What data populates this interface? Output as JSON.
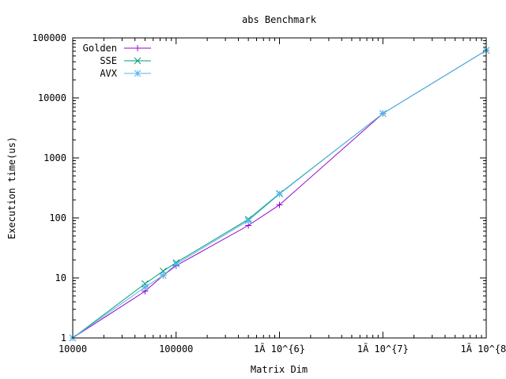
{
  "chart_data": {
    "type": "line",
    "title": "abs Benchmark",
    "xlabel": "Matrix Dim",
    "ylabel": "Execution time(us)",
    "x_scale": "log",
    "y_scale": "log",
    "xlim": [
      10000,
      100000000
    ],
    "ylim": [
      1,
      100000
    ],
    "x_ticks": [
      {
        "value": 10000,
        "label": "10000"
      },
      {
        "value": 100000,
        "label": "100000"
      },
      {
        "value": 1000000,
        "label": "1Ã 10^{6}"
      },
      {
        "value": 10000000,
        "label": "1Ã 10^{7}"
      },
      {
        "value": 100000000,
        "label": "1Ã 10^{8}"
      }
    ],
    "y_ticks": [
      {
        "value": 1,
        "label": "1"
      },
      {
        "value": 10,
        "label": "10"
      },
      {
        "value": 100,
        "label": "100"
      },
      {
        "value": 1000,
        "label": "1000"
      },
      {
        "value": 10000,
        "label": "10000"
      },
      {
        "value": 100000,
        "label": "100000"
      }
    ],
    "grid": false,
    "legend_position": "top-left",
    "series": [
      {
        "name": "Golden",
        "color": "#9400d3",
        "marker": "plus",
        "x": [
          10000,
          50000,
          75000,
          100000,
          500000,
          1000000,
          10000000,
          100000000
        ],
        "y": [
          1,
          6,
          11,
          16,
          75,
          165,
          5500,
          62000
        ]
      },
      {
        "name": "SSE",
        "color": "#009e73",
        "marker": "cross",
        "x": [
          10000,
          50000,
          75000,
          100000,
          500000,
          1000000,
          10000000,
          100000000
        ],
        "y": [
          1,
          8,
          13,
          18,
          95,
          255,
          5500,
          62000
        ]
      },
      {
        "name": "AVX",
        "color": "#56b4e9",
        "marker": "star",
        "x": [
          10000,
          50000,
          75000,
          100000,
          500000,
          1000000,
          10000000,
          100000000
        ],
        "y": [
          1,
          7,
          11,
          17,
          90,
          250,
          5500,
          62000
        ]
      }
    ]
  }
}
